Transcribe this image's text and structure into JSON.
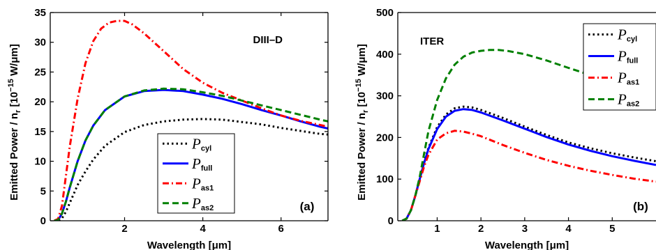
{
  "chart_data": [
    {
      "type": "line",
      "panel_label": "(a)",
      "annotation": "DIII–D",
      "xlabel": "Wavelength [μm]",
      "ylabel": "Emitted Power / n",
      "ylabel_sub": "r",
      "ylabel_unit": "[10",
      "ylabel_exp": "−15",
      "ylabel_unit2": " W/μm]",
      "xlim": [
        0.1,
        7.2
      ],
      "ylim": [
        0,
        35
      ],
      "xticks": [
        2,
        4,
        6
      ],
      "yticks": [
        0,
        5,
        10,
        15,
        20,
        25,
        30,
        35
      ],
      "legend_position": "bottom-center",
      "grid": false,
      "series": [
        {
          "name": "P",
          "name_sub": "cyl",
          "color": "#000000",
          "dash": "dotted",
          "x": [
            0.2,
            0.3,
            0.4,
            0.5,
            0.6,
            0.8,
            1.0,
            1.2,
            1.5,
            2.0,
            2.5,
            3.0,
            3.5,
            4.0,
            4.5,
            5.0,
            5.5,
            6.0,
            6.5,
            7.0,
            7.2
          ],
          "y": [
            0,
            0,
            0.4,
            1.5,
            3,
            6,
            8.3,
            10.3,
            12.6,
            14.9,
            16.1,
            16.7,
            17.0,
            17.1,
            17.0,
            16.6,
            16.2,
            15.6,
            15.1,
            14.6,
            14.5
          ]
        },
        {
          "name": "P",
          "name_sub": "full",
          "color": "#0000ff",
          "dash": "solid",
          "x": [
            0.2,
            0.3,
            0.4,
            0.5,
            0.6,
            0.8,
            1.0,
            1.2,
            1.5,
            2.0,
            2.5,
            3.0,
            3.5,
            4.0,
            4.5,
            5.0,
            5.5,
            6.0,
            6.5,
            7.0,
            7.2
          ],
          "y": [
            0,
            0.1,
            1.2,
            3.2,
            5.6,
            10,
            13.5,
            16,
            18.6,
            20.9,
            21.8,
            22.0,
            21.8,
            21.2,
            20.5,
            19.6,
            18.6,
            17.7,
            16.7,
            15.8,
            15.5
          ]
        },
        {
          "name": "P",
          "name_sub": "as1",
          "color": "#ff0000",
          "dash": "dashdot",
          "x": [
            0.2,
            0.3,
            0.4,
            0.5,
            0.6,
            0.8,
            1.0,
            1.2,
            1.4,
            1.6,
            1.8,
            2.0,
            2.2,
            2.5,
            3.0,
            3.5,
            4.0,
            4.5,
            5.0,
            5.5,
            6.0,
            6.5,
            7.0,
            7.2
          ],
          "y": [
            0,
            0.3,
            2.5,
            7.5,
            12.5,
            20.5,
            26.5,
            30.2,
            32.3,
            33.3,
            33.6,
            33.6,
            33.0,
            31.5,
            28.5,
            25.5,
            23.2,
            21.5,
            20.2,
            18.9,
            17.7,
            16.8,
            16.1,
            15.8
          ]
        },
        {
          "name": "P",
          "name_sub": "as2",
          "color": "#008000",
          "dash": "dashed",
          "x": [
            0.2,
            0.3,
            0.4,
            0.5,
            0.6,
            0.8,
            1.0,
            1.2,
            1.5,
            2.0,
            2.5,
            3.0,
            3.5,
            4.0,
            4.5,
            5.0,
            5.5,
            6.0,
            6.5,
            7.0,
            7.2
          ],
          "y": [
            0,
            0.1,
            1.2,
            3.2,
            5.6,
            10,
            13.5,
            16,
            18.6,
            20.9,
            21.9,
            22.2,
            22.1,
            21.6,
            21.0,
            20.2,
            19.4,
            18.6,
            17.8,
            17.0,
            16.7
          ]
        }
      ]
    },
    {
      "type": "line",
      "panel_label": "(b)",
      "annotation": "ITER",
      "xlabel": "Wavelength [μm]",
      "ylabel": "Emitted Power / n",
      "ylabel_sub": "r",
      "ylabel_unit": "[10",
      "ylabel_exp": "−15",
      "ylabel_unit2": " W/μm]",
      "xlim": [
        0.1,
        6.0
      ],
      "ylim": [
        0,
        500
      ],
      "xticks": [
        1,
        2,
        3,
        4,
        5
      ],
      "yticks": [
        0,
        100,
        200,
        300,
        400,
        500
      ],
      "legend_position": "top-right",
      "grid": false,
      "series": [
        {
          "name": "P",
          "name_sub": "cyl",
          "color": "#000000",
          "dash": "dotted",
          "x": [
            0.2,
            0.3,
            0.4,
            0.5,
            0.6,
            0.7,
            0.8,
            1.0,
            1.2,
            1.4,
            1.6,
            1.8,
            2.0,
            2.5,
            3.0,
            3.5,
            4.0,
            4.5,
            5.0,
            5.5,
            6.0
          ],
          "y": [
            0,
            5,
            25,
            60,
            100,
            140,
            175,
            225,
            255,
            270,
            274,
            272,
            266,
            247,
            226,
            206,
            188,
            174,
            162,
            152,
            143
          ]
        },
        {
          "name": "P",
          "name_sub": "full",
          "color": "#0000ff",
          "dash": "solid",
          "x": [
            0.2,
            0.3,
            0.4,
            0.5,
            0.6,
            0.7,
            0.8,
            1.0,
            1.2,
            1.4,
            1.6,
            1.8,
            2.0,
            2.5,
            3.0,
            3.5,
            4.0,
            4.5,
            5.0,
            5.5,
            6.0
          ],
          "y": [
            0,
            5,
            25,
            60,
            100,
            138,
            172,
            220,
            250,
            264,
            268,
            266,
            260,
            241,
            221,
            201,
            183,
            168,
            155,
            144,
            134
          ]
        },
        {
          "name": "P",
          "name_sub": "as1",
          "color": "#ff0000",
          "dash": "dashdot",
          "x": [
            0.2,
            0.3,
            0.4,
            0.5,
            0.6,
            0.7,
            0.8,
            1.0,
            1.2,
            1.4,
            1.6,
            1.8,
            2.0,
            2.5,
            3.0,
            3.5,
            4.0,
            4.5,
            5.0,
            5.5,
            6.0
          ],
          "y": [
            0,
            5,
            25,
            60,
            95,
            130,
            158,
            195,
            210,
            216,
            214,
            209,
            203,
            182,
            163,
            146,
            132,
            120,
            110,
            101,
            94
          ]
        },
        {
          "name": "P",
          "name_sub": "as2",
          "color": "#008000",
          "dash": "dashed",
          "x": [
            0.2,
            0.3,
            0.4,
            0.5,
            0.6,
            0.7,
            0.8,
            1.0,
            1.2,
            1.4,
            1.6,
            1.8,
            2.0,
            2.2,
            2.4,
            2.6,
            3.0,
            3.5,
            4.0,
            4.5,
            5.0,
            5.5,
            6.0
          ],
          "y": [
            0,
            5,
            25,
            60,
            105,
            160,
            215,
            290,
            342,
            375,
            394,
            404,
            408,
            410,
            410,
            408,
            400,
            385,
            367,
            350,
            330,
            312,
            295
          ]
        }
      ]
    }
  ]
}
